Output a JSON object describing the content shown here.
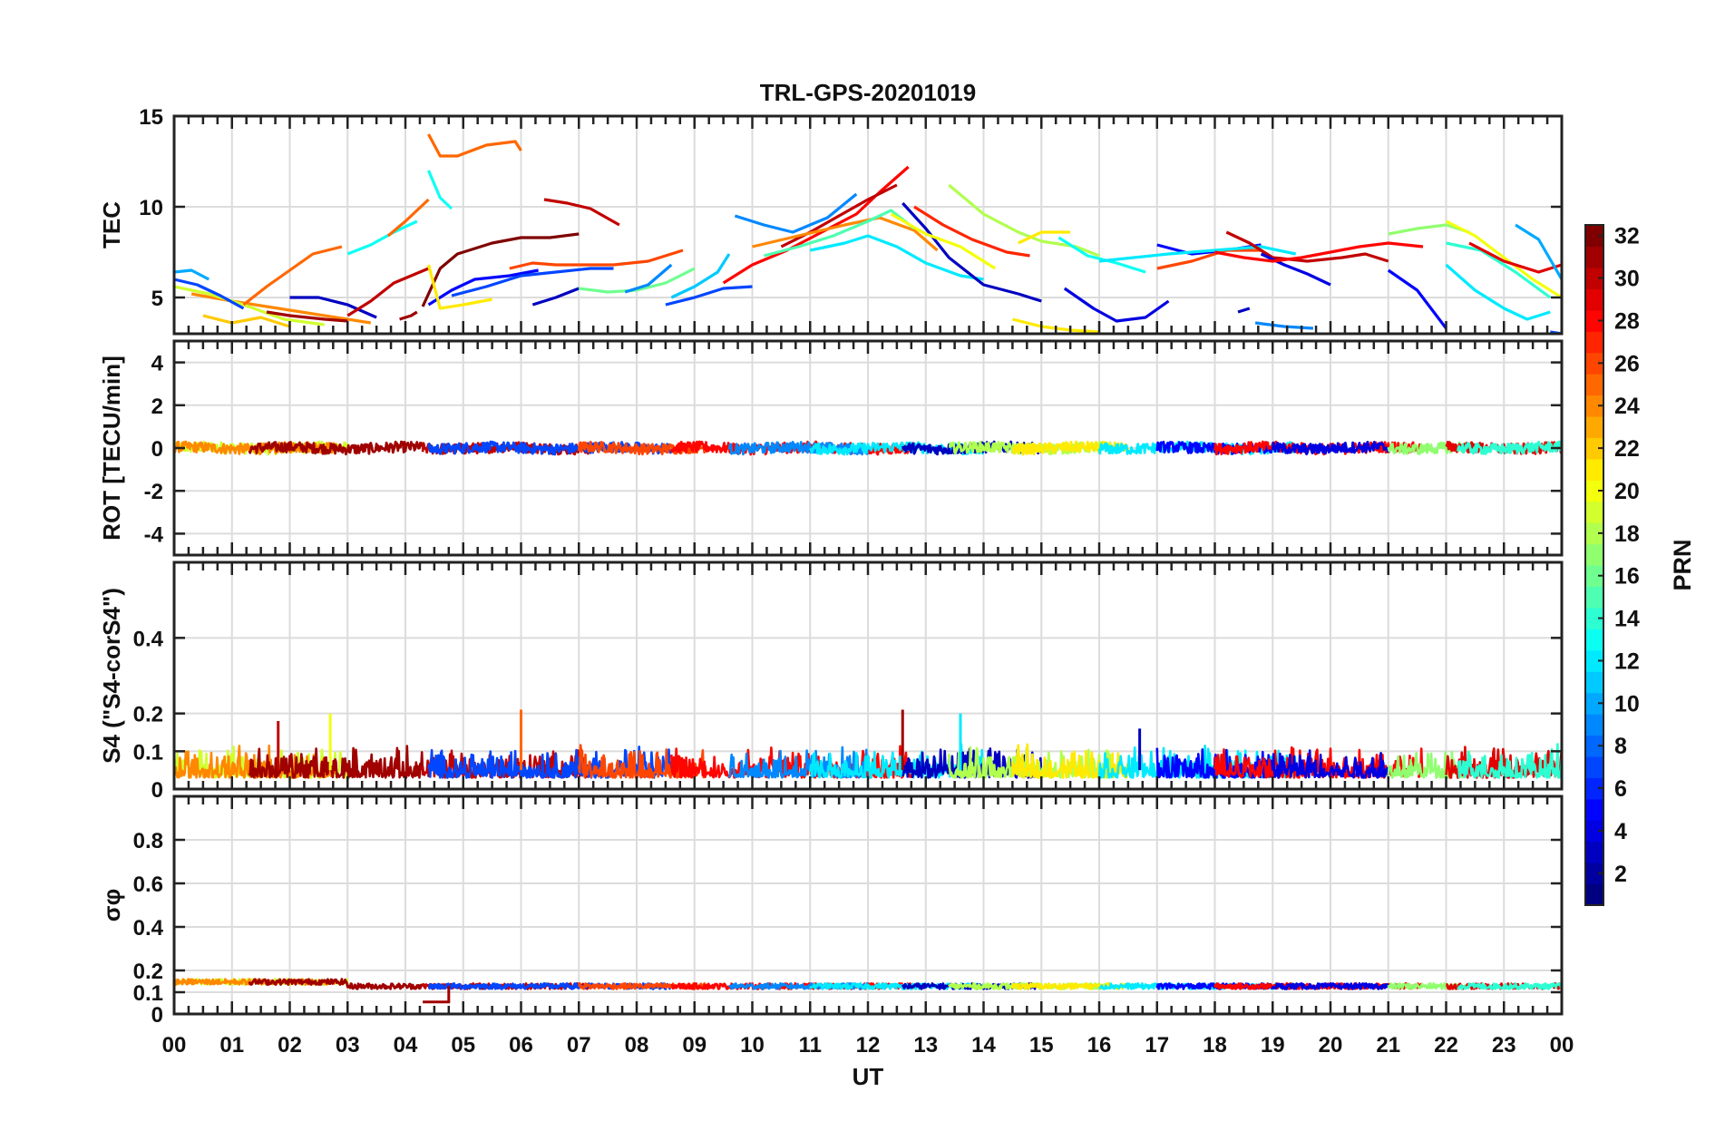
{
  "chart_data": {
    "type": "line",
    "title": "TRL-GPS-20201019",
    "xlabel": "UT",
    "x_tick_labels": [
      "00",
      "01",
      "02",
      "03",
      "04",
      "05",
      "06",
      "07",
      "08",
      "09",
      "10",
      "11",
      "12",
      "13",
      "14",
      "15",
      "16",
      "17",
      "18",
      "19",
      "20",
      "21",
      "22",
      "23",
      "00"
    ],
    "x_range_hours": [
      0,
      24
    ],
    "colorbar": {
      "label": "PRN",
      "range": [
        1,
        32
      ],
      "ticks": [
        "2",
        "4",
        "6",
        "8",
        "10",
        "12",
        "14",
        "16",
        "18",
        "20",
        "22",
        "24",
        "26",
        "28",
        "30",
        "32"
      ],
      "colormap": "jet"
    },
    "panels": [
      {
        "id": "tec",
        "ylabel": "TEC",
        "ylim": [
          3,
          15
        ],
        "yticks": [
          "5",
          "10",
          "15"
        ],
        "ytick_values": [
          5,
          10,
          15
        ],
        "series": [
          {
            "prn": 24,
            "x": [
              0.3,
              1.0,
              2.0,
              2.8,
              3.4
            ],
            "y": [
              5.2,
              4.8,
              4.3,
              3.9,
              3.6
            ]
          },
          {
            "prn": 19,
            "x": [
              0.0,
              0.6,
              1.2,
              1.9,
              2.6
            ],
            "y": [
              5.6,
              5.2,
              4.6,
              3.8,
              3.5
            ]
          },
          {
            "prn": 10,
            "x": [
              0.0,
              0.3,
              0.6
            ],
            "y": [
              6.4,
              6.5,
              6.0
            ]
          },
          {
            "prn": 7,
            "x": [
              0.0,
              0.4,
              0.8,
              1.2
            ],
            "y": [
              6.0,
              5.7,
              5.1,
              4.4
            ]
          },
          {
            "prn": 25,
            "x": [
              1.2,
              1.6,
              2.0,
              2.4,
              2.9
            ],
            "y": [
              4.6,
              5.6,
              6.5,
              7.4,
              7.8
            ]
          },
          {
            "prn": 22,
            "x": [
              0.5,
              1.0,
              1.5,
              2.0
            ],
            "y": [
              4.0,
              3.6,
              3.9,
              3.4
            ]
          },
          {
            "prn": 3,
            "x": [
              2.0,
              2.5,
              3.0,
              3.5
            ],
            "y": [
              5.0,
              5.0,
              4.6,
              3.9
            ]
          },
          {
            "prn": 31,
            "x": [
              1.6,
              2.0,
              2.6,
              3.0
            ],
            "y": [
              4.2,
              4.0,
              3.8,
              3.7
            ]
          },
          {
            "prn": 30,
            "x": [
              3.0,
              3.4,
              3.8,
              4.4
            ],
            "y": [
              4.0,
              4.8,
              5.8,
              6.6
            ]
          },
          {
            "prn": 13,
            "x": [
              3.0,
              3.4,
              3.8,
              4.2
            ],
            "y": [
              7.4,
              7.9,
              8.6,
              9.2
            ]
          },
          {
            "prn": 25,
            "x": [
              3.7,
              4.0,
              4.4
            ],
            "y": [
              8.4,
              9.2,
              10.4
            ]
          },
          {
            "prn": 13,
            "x": [
              4.4,
              4.6,
              4.8
            ],
            "y": [
              12.0,
              10.5,
              9.9
            ]
          },
          {
            "prn": 25,
            "x": [
              4.4,
              4.6,
              4.9,
              5.4,
              5.9,
              6.0
            ],
            "y": [
              14.0,
              12.8,
              12.8,
              13.4,
              13.6,
              13.1
            ]
          },
          {
            "prn": 31,
            "x": [
              3.9,
              4.1,
              4.2
            ],
            "y": [
              3.8,
              4.0,
              4.2
            ]
          },
          {
            "prn": 32,
            "x": [
              4.3,
              4.6,
              4.9,
              5.5,
              6.0,
              6.5,
              7.0
            ],
            "y": [
              4.5,
              6.6,
              7.4,
              8.0,
              8.3,
              8.3,
              8.5
            ]
          },
          {
            "prn": 5,
            "x": [
              4.4,
              4.8,
              5.2,
              5.8,
              6.3
            ],
            "y": [
              4.6,
              5.4,
              6.0,
              6.2,
              6.5
            ]
          },
          {
            "prn": 21,
            "x": [
              4.4,
              4.6,
              5.0,
              5.5
            ],
            "y": [
              6.8,
              4.4,
              4.6,
              4.9
            ]
          },
          {
            "prn": 26,
            "x": [
              5.8,
              6.2,
              6.6,
              7.0
            ],
            "y": [
              6.6,
              6.9,
              6.8,
              6.8
            ]
          },
          {
            "prn": 30,
            "x": [
              6.4,
              6.8,
              7.2,
              7.7
            ],
            "y": [
              10.4,
              10.2,
              9.9,
              9.0
            ]
          },
          {
            "prn": 7,
            "x": [
              4.8,
              5.4,
              6.0,
              6.6,
              7.2,
              7.6
            ],
            "y": [
              5.1,
              5.6,
              6.2,
              6.4,
              6.6,
              6.6
            ]
          },
          {
            "prn": 3,
            "x": [
              6.2,
              6.6,
              7.0
            ],
            "y": [
              4.6,
              5.0,
              5.5
            ]
          },
          {
            "prn": 16,
            "x": [
              7.0,
              7.5,
              8.0,
              8.5,
              9.0
            ],
            "y": [
              5.5,
              5.3,
              5.4,
              5.8,
              6.6
            ]
          },
          {
            "prn": 26,
            "x": [
              7.0,
              7.6,
              8.2,
              8.8
            ],
            "y": [
              6.8,
              6.8,
              7.0,
              7.6
            ]
          },
          {
            "prn": 9,
            "x": [
              7.8,
              8.2,
              8.6
            ],
            "y": [
              5.3,
              5.7,
              6.8
            ]
          },
          {
            "prn": 7,
            "x": [
              8.5,
              9.0,
              9.5,
              10.0
            ],
            "y": [
              4.6,
              5.0,
              5.5,
              5.6
            ]
          },
          {
            "prn": 11,
            "x": [
              8.6,
              9.0,
              9.4,
              9.6
            ],
            "y": [
              5.0,
              5.6,
              6.4,
              7.4
            ]
          },
          {
            "prn": 9,
            "x": [
              9.7,
              10.2,
              10.7,
              11.3,
              11.8
            ],
            "y": [
              9.5,
              9.0,
              8.6,
              9.4,
              10.7
            ]
          },
          {
            "prn": 28,
            "x": [
              9.5,
              10.0,
              10.6,
              11.2,
              11.8,
              12.2,
              12.7
            ],
            "y": [
              5.8,
              6.8,
              7.6,
              8.6,
              9.6,
              10.8,
              12.2
            ]
          },
          {
            "prn": 30,
            "x": [
              10.5,
              11.0,
              11.5,
              12.0,
              12.5
            ],
            "y": [
              7.8,
              8.6,
              9.5,
              10.4,
              11.2
            ]
          },
          {
            "prn": 24,
            "x": [
              10.0,
              10.8,
              11.6,
              12.2,
              12.8,
              13.2
            ],
            "y": [
              7.8,
              8.4,
              9.0,
              9.4,
              8.7,
              7.6
            ]
          },
          {
            "prn": 15,
            "x": [
              10.2,
              10.8,
              11.4,
              12.0,
              12.4,
              12.8
            ],
            "y": [
              7.3,
              7.8,
              8.4,
              9.2,
              9.8,
              8.8
            ]
          },
          {
            "prn": 12,
            "x": [
              11.0,
              11.6,
              12.0,
              12.5,
              13.0,
              13.6,
              14.0
            ],
            "y": [
              7.6,
              8.0,
              8.4,
              7.8,
              6.9,
              6.2,
              6.0
            ]
          },
          {
            "prn": 3,
            "x": [
              12.6,
              13.0,
              13.4,
              14.0,
              14.6,
              15.0
            ],
            "y": [
              10.2,
              8.8,
              7.2,
              5.7,
              5.2,
              4.8
            ]
          },
          {
            "prn": 27,
            "x": [
              12.8,
              13.3,
              13.8,
              14.4,
              14.8
            ],
            "y": [
              10.0,
              9.0,
              8.2,
              7.5,
              7.3
            ]
          },
          {
            "prn": 20,
            "x": [
              12.4,
              13.0,
              13.6,
              14.2
            ],
            "y": [
              9.6,
              8.5,
              7.8,
              6.6
            ]
          },
          {
            "prn": 18,
            "x": [
              13.4,
              14.0,
              14.6,
              15.0,
              15.6,
              16.0
            ],
            "y": [
              11.2,
              9.6,
              8.6,
              8.1,
              7.8,
              7.3
            ]
          },
          {
            "prn": 21,
            "x": [
              14.6,
              15.0,
              15.5
            ],
            "y": [
              8.0,
              8.6,
              8.6
            ]
          },
          {
            "prn": 13,
            "x": [
              15.3,
              15.8,
              16.3,
              16.8
            ],
            "y": [
              8.3,
              7.3,
              6.9,
              6.4
            ]
          },
          {
            "prn": 4,
            "x": [
              15.4,
              15.9,
              16.3,
              16.8,
              17.2
            ],
            "y": [
              5.5,
              4.4,
              3.7,
              3.9,
              4.8
            ]
          },
          {
            "prn": 21,
            "x": [
              14.5,
              15.0,
              15.5,
              16.0
            ],
            "y": [
              3.8,
              3.4,
              3.2,
              3.1
            ]
          },
          {
            "prn": 5,
            "x": [
              17.0,
              17.6,
              18.2,
              18.8
            ],
            "y": [
              7.9,
              7.4,
              7.6,
              7.9
            ]
          },
          {
            "prn": 26,
            "x": [
              17.0,
              17.6,
              18.2,
              18.8
            ],
            "y": [
              6.6,
              7.0,
              7.6,
              7.6
            ]
          },
          {
            "prn": 12,
            "x": [
              16.0,
              16.6,
              17.2,
              18.0,
              18.8,
              19.4
            ],
            "y": [
              7.0,
              7.2,
              7.4,
              7.6,
              7.8,
              7.4
            ]
          },
          {
            "prn": 30,
            "x": [
              18.2,
              18.6,
              19.0,
              19.6,
              20.2,
              20.6,
              21.0
            ],
            "y": [
              8.6,
              8.0,
              7.2,
              7.0,
              7.2,
              7.4,
              7.0
            ]
          },
          {
            "prn": 4,
            "x": [
              18.8,
              19.2,
              19.6,
              20.0
            ],
            "y": [
              7.4,
              6.8,
              6.3,
              5.7
            ]
          },
          {
            "prn": 9,
            "x": [
              18.7,
              19.2,
              19.7
            ],
            "y": [
              3.6,
              3.4,
              3.3
            ]
          },
          {
            "prn": 3,
            "x": [
              18.4,
              18.6
            ],
            "y": [
              4.2,
              4.4
            ]
          },
          {
            "prn": 28,
            "x": [
              18.0,
              18.5,
              19.0,
              19.5,
              20.0,
              20.5,
              21.0,
              21.6
            ],
            "y": [
              7.5,
              7.2,
              7.0,
              7.2,
              7.5,
              7.8,
              8.0,
              7.8
            ]
          },
          {
            "prn": 17,
            "x": [
              21.0,
              21.5,
              22.0,
              22.4
            ],
            "y": [
              8.5,
              8.8,
              9.0,
              8.6
            ]
          },
          {
            "prn": 5,
            "x": [
              21.0,
              21.5,
              22.0
            ],
            "y": [
              6.5,
              5.4,
              3.3
            ]
          },
          {
            "prn": 20,
            "x": [
              22.0,
              22.5,
              23.0,
              23.5,
              24.0
            ],
            "y": [
              9.2,
              8.4,
              7.2,
              6.0,
              5.0
            ]
          },
          {
            "prn": 14,
            "x": [
              22.0,
              22.6,
              23.2,
              23.8
            ],
            "y": [
              8.0,
              7.6,
              6.4,
              5.0
            ]
          },
          {
            "prn": 12,
            "x": [
              22.0,
              22.5,
              23.0,
              23.4,
              23.8
            ],
            "y": [
              6.8,
              5.4,
              4.4,
              3.8,
              4.2
            ]
          },
          {
            "prn": 29,
            "x": [
              22.4,
              23.0,
              23.6,
              24.0
            ],
            "y": [
              8.0,
              7.0,
              6.4,
              6.8
            ]
          },
          {
            "prn": 10,
            "x": [
              23.2,
              23.6,
              24.0
            ],
            "y": [
              9.0,
              8.2,
              6.0
            ]
          },
          {
            "prn": 7,
            "x": [
              23.8,
              24.0
            ],
            "y": [
              3.1,
              3.0
            ]
          }
        ]
      },
      {
        "id": "rot",
        "ylabel": "ROT [TECU/min]",
        "ylim": [
          -5,
          5
        ],
        "yticks": [
          "-4",
          "-2",
          "0",
          "2",
          "4"
        ],
        "ytick_values": [
          -4,
          -2,
          0,
          2,
          4
        ],
        "value_summary": "All PRNs fluctuate within about ±0.3 TECU/min around 0 throughout the day"
      },
      {
        "id": "s4",
        "ylabel": "S4 (\"S4-corS4\")",
        "ylim": [
          0,
          0.6
        ],
        "yticks": [
          "0",
          "0.1",
          "0.2",
          "0.4"
        ],
        "ytick_values": [
          0,
          0.1,
          0.2,
          0.4
        ],
        "value_summary": "Mostly 0.02–0.1 with spikes up to ~0.21 (near 06 UT and 12.6 UT)",
        "spikes": [
          {
            "x": 1.8,
            "y": 0.18
          },
          {
            "x": 2.7,
            "y": 0.2
          },
          {
            "x": 6.0,
            "y": 0.21
          },
          {
            "x": 12.6,
            "y": 0.21
          },
          {
            "x": 13.6,
            "y": 0.2
          },
          {
            "x": 16.7,
            "y": 0.16
          }
        ]
      },
      {
        "id": "sigma_phi",
        "ylabel": "σφ",
        "ylim": [
          0,
          1
        ],
        "yticks": [
          "0",
          "0.1",
          "0.2",
          "0.4",
          "0.6",
          "0.8"
        ],
        "ytick_values": [
          0,
          0.1,
          0.2,
          0.4,
          0.6,
          0.8
        ],
        "value_summary": "Near-constant ~0.12–0.15 all day; brief dip to ~0.05 around 04:30–04:45 UT"
      }
    ]
  }
}
